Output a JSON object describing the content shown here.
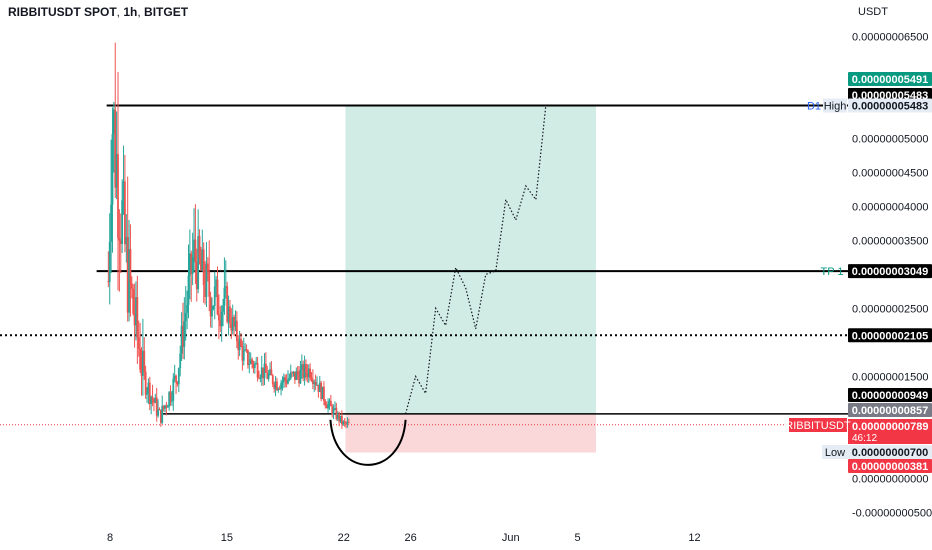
{
  "header": {
    "symbol": "RIBBITUSDT SPOT",
    "separator1": ", ",
    "interval": "1h",
    "separator2": ", ",
    "exchange": "BITGET"
  },
  "price_axis": {
    "unit": "USDT",
    "ticks": [
      "0.00000006500",
      "0.00000005000",
      "0.00000004500",
      "0.00000004000",
      "0.00000003500",
      "0.00000002500",
      "0.00000001500",
      "0.00000000000",
      "-0.00000000500"
    ]
  },
  "time_axis": {
    "ticks": [
      "8",
      "15",
      "22",
      "26",
      "Jun",
      "5",
      "12"
    ]
  },
  "colors": {
    "up": "#26a69a",
    "down": "#ef5350",
    "target_zone": "#d1ece5",
    "stop_zone": "#fad7d8",
    "level_line": "#000000",
    "tp_label": "#089981",
    "current_price_line": "#f23645"
  },
  "badges": {
    "target_price": "0.00000005491",
    "high_price": "0.00000005483",
    "d1_high_price": "0.00000005483",
    "tp1_price": "0.00000003049",
    "dotted_level_price": "0.00000002105",
    "entry_price": "0.00000000949",
    "gray_price": "0.00000000857",
    "ticker_name": "RIBBITUSDT",
    "last_price": "0.00000000789",
    "countdown": "46:12",
    "low_price": "0.00000000700",
    "stop_price": "0.00000000381"
  },
  "labels": {
    "d1": "D1",
    "high": "High",
    "tp1": "TP 1",
    "low": "Low"
  },
  "chart_data": {
    "type": "candlestick",
    "symbol": "RIBBITUSDT",
    "interval": "1h",
    "y_unit": "USDT",
    "x_axis_dates": [
      "8",
      "15",
      "22",
      "26",
      "Jun",
      "5",
      "12"
    ],
    "price_path_approx": [
      {
        "date": "May 8",
        "value": 2.9e-08
      },
      {
        "date": "May 8",
        "value": 5.4e-08
      },
      {
        "date": "May 9",
        "value": 3.1e-08
      },
      {
        "date": "May 10",
        "value": 1.5e-08
      },
      {
        "date": "May 11",
        "value": 9e-09
      },
      {
        "date": "May 12",
        "value": 1.5e-08
      },
      {
        "date": "May 13",
        "value": 3.3e-08
      },
      {
        "date": "May 14",
        "value": 2.7e-08
      },
      {
        "date": "May 15",
        "value": 2.5e-08
      },
      {
        "date": "May 16",
        "value": 1.8e-08
      },
      {
        "date": "May 18",
        "value": 1.4e-08
      },
      {
        "date": "May 20",
        "value": 1.6e-08
      },
      {
        "date": "May 21",
        "value": 1.1e-08
      },
      {
        "date": "May 22",
        "value": 7.9e-09
      }
    ],
    "levels": {
      "d1_high": 5.483e-08,
      "tp1": 3.049e-08,
      "dotted_level": 2.105e-08,
      "entry_support": 9.49e-09,
      "gray_level": 8.57e-09,
      "last_price": 7.89e-09,
      "low": 7e-09,
      "stop": 3.81e-09
    },
    "projection_path": [
      9.5e-09,
      1.5e-08,
      1.25e-08,
      2.5e-08,
      2.25e-08,
      3.1e-08,
      2.8e-08,
      2.2e-08,
      3e-08,
      3.05e-08,
      4.1e-08,
      3.8e-08,
      4.3e-08,
      4.1e-08,
      5.49e-08
    ]
  }
}
